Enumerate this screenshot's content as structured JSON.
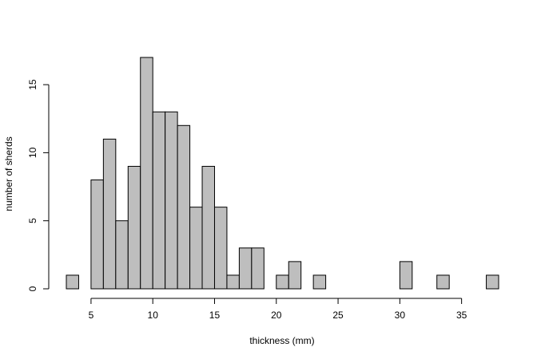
{
  "chart_data": {
    "type": "bar",
    "title": "",
    "xlabel": "thickness (mm)",
    "ylabel": "number of sherds",
    "bin_width": 1,
    "bins": [
      {
        "start": 3,
        "end": 4,
        "count": 1
      },
      {
        "start": 4,
        "end": 5,
        "count": 0
      },
      {
        "start": 5,
        "end": 6,
        "count": 8
      },
      {
        "start": 6,
        "end": 7,
        "count": 11
      },
      {
        "start": 7,
        "end": 8,
        "count": 5
      },
      {
        "start": 8,
        "end": 9,
        "count": 9
      },
      {
        "start": 9,
        "end": 10,
        "count": 17
      },
      {
        "start": 10,
        "end": 11,
        "count": 13
      },
      {
        "start": 11,
        "end": 12,
        "count": 13
      },
      {
        "start": 12,
        "end": 13,
        "count": 12
      },
      {
        "start": 13,
        "end": 14,
        "count": 6
      },
      {
        "start": 14,
        "end": 15,
        "count": 9
      },
      {
        "start": 15,
        "end": 16,
        "count": 6
      },
      {
        "start": 16,
        "end": 17,
        "count": 1
      },
      {
        "start": 17,
        "end": 18,
        "count": 3
      },
      {
        "start": 18,
        "end": 19,
        "count": 3
      },
      {
        "start": 19,
        "end": 20,
        "count": 0
      },
      {
        "start": 20,
        "end": 21,
        "count": 1
      },
      {
        "start": 21,
        "end": 22,
        "count": 2
      },
      {
        "start": 22,
        "end": 23,
        "count": 0
      },
      {
        "start": 23,
        "end": 24,
        "count": 1
      },
      {
        "start": 24,
        "end": 25,
        "count": 0
      },
      {
        "start": 25,
        "end": 26,
        "count": 0
      },
      {
        "start": 26,
        "end": 27,
        "count": 0
      },
      {
        "start": 27,
        "end": 28,
        "count": 0
      },
      {
        "start": 28,
        "end": 29,
        "count": 0
      },
      {
        "start": 29,
        "end": 30,
        "count": 0
      },
      {
        "start": 30,
        "end": 31,
        "count": 2
      },
      {
        "start": 31,
        "end": 32,
        "count": 0
      },
      {
        "start": 32,
        "end": 33,
        "count": 0
      },
      {
        "start": 33,
        "end": 34,
        "count": 1
      },
      {
        "start": 34,
        "end": 35,
        "count": 0
      },
      {
        "start": 35,
        "end": 36,
        "count": 0
      },
      {
        "start": 36,
        "end": 37,
        "count": 0
      },
      {
        "start": 37,
        "end": 38,
        "count": 1
      }
    ],
    "xlim": [
      3,
      38
    ],
    "ylim": [
      0,
      17
    ],
    "x_ticks": [
      5,
      10,
      15,
      20,
      25,
      30,
      35
    ],
    "y_ticks": [
      0,
      5,
      10,
      15
    ],
    "grid": false,
    "legend": "none",
    "bar_fill": "#bebebe",
    "bar_stroke": "#000000"
  }
}
